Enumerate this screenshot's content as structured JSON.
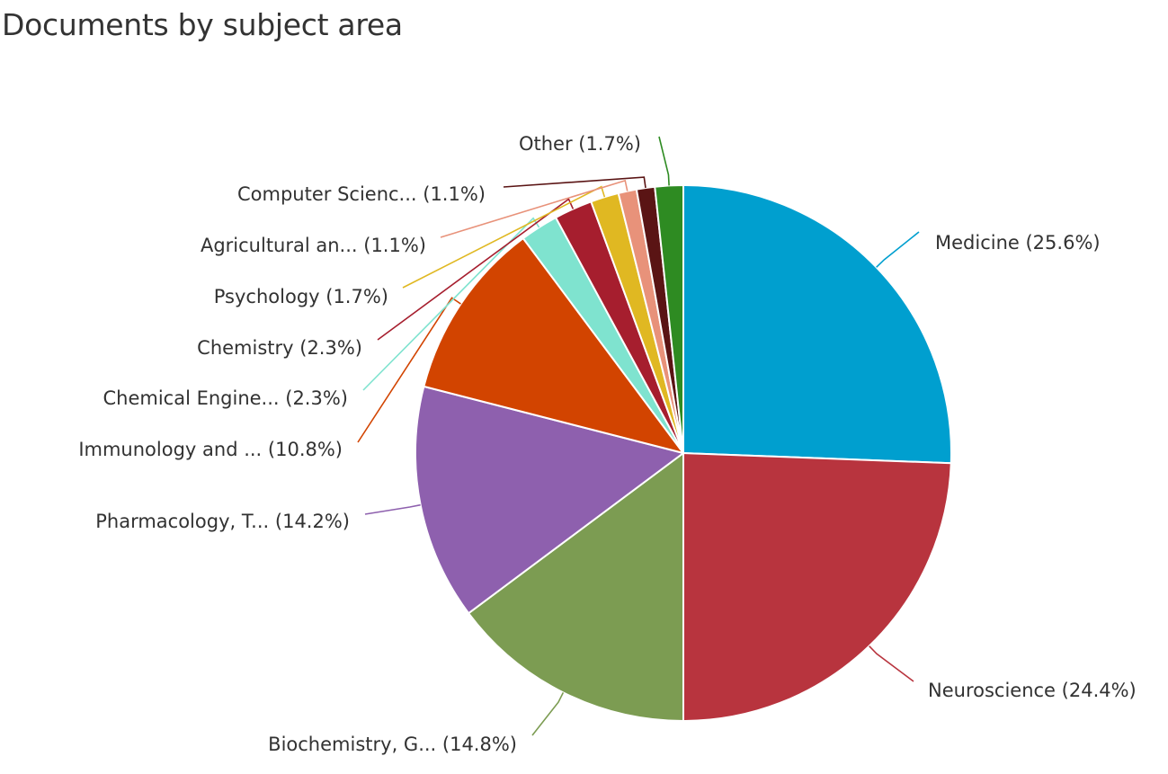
{
  "title": "Documents by subject area",
  "chart_data": {
    "type": "pie",
    "title": "Documents by subject area",
    "slices": [
      {
        "name": "Medicine",
        "value": 25.6,
        "label": "Medicine (25.6%)",
        "color": "#009fcf"
      },
      {
        "name": "Neuroscience",
        "value": 24.4,
        "label": "Neuroscience (24.4%)",
        "color": "#b8343e"
      },
      {
        "name": "Biochemistry, G...",
        "value": 14.8,
        "label": "Biochemistry, G... (14.8%)",
        "color": "#7c9c52"
      },
      {
        "name": "Pharmacology, T...",
        "value": 14.2,
        "label": "Pharmacology, T... (14.2%)",
        "color": "#8e60ae"
      },
      {
        "name": "Immunology and ...",
        "value": 10.8,
        "label": "Immunology and ... (10.8%)",
        "color": "#d24400"
      },
      {
        "name": "Chemical Engine...",
        "value": 2.3,
        "label": "Chemical Engine... (2.3%)",
        "color": "#7fe3cf"
      },
      {
        "name": "Chemistry",
        "value": 2.3,
        "label": "Chemistry (2.3%)",
        "color": "#a61e2e"
      },
      {
        "name": "Psychology",
        "value": 1.7,
        "label": "Psychology (1.7%)",
        "color": "#e0b822"
      },
      {
        "name": "Agricultural an...",
        "value": 1.1,
        "label": "Agricultural an... (1.1%)",
        "color": "#e8927a"
      },
      {
        "name": "Computer Scienc...",
        "value": 1.1,
        "label": "Computer Scienc... (1.1%)",
        "color": "#5a1414"
      },
      {
        "name": "Other",
        "value": 1.7,
        "label": "Other (1.7%)",
        "color": "#2e8b22"
      }
    ]
  }
}
